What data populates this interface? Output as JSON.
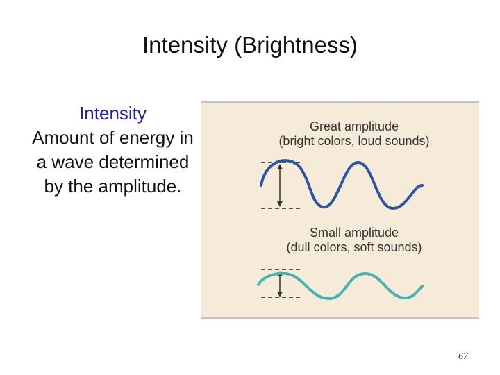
{
  "slide": {
    "title": "Intensity (Brightness)",
    "term": "Intensity",
    "definition": "Amount of energy in a wave determined by the amplitude.",
    "page_number": "67"
  },
  "figure": {
    "great": {
      "caption_line1": "Great amplitude",
      "caption_line2": "(bright colors, loud sounds)",
      "color": "#2e56a0"
    },
    "small": {
      "caption_line1": "Small amplitude",
      "caption_line2": "(dull colors, soft sounds)",
      "color": "#46b3b0"
    },
    "background_color": "#f6ebd9"
  }
}
